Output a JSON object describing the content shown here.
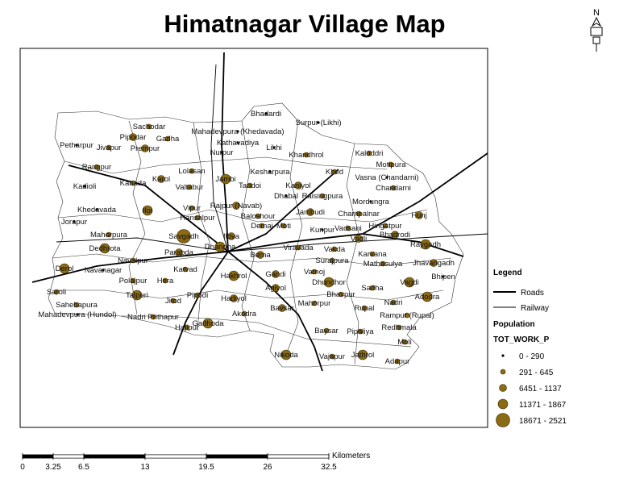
{
  "title": "Himatnagar Village Map",
  "north": "N",
  "villages": [
    {
      "name": "Bhadardi",
      "class": 0
    },
    {
      "name": "Surpur (Likhi)",
      "class": 0
    },
    {
      "name": "Sachodar",
      "class": 1
    },
    {
      "name": "Pipodar",
      "class": 2
    },
    {
      "name": "Gadha",
      "class": 1
    },
    {
      "name": "Mahadevpura (Khedavada)",
      "class": 0
    },
    {
      "name": "Kathavadiya",
      "class": 0
    },
    {
      "name": "Petharpur",
      "class": 0
    },
    {
      "name": "Jivapur",
      "class": 1
    },
    {
      "name": "Prempur",
      "class": 2
    },
    {
      "name": "Nurpur",
      "class": 0
    },
    {
      "name": "Likhi",
      "class": 0
    },
    {
      "name": "Khandhrol",
      "class": 1
    },
    {
      "name": "Kaloddri",
      "class": 1
    },
    {
      "name": "Motipura",
      "class": 1
    },
    {
      "name": "Rangpur",
      "class": 1
    },
    {
      "name": "Lolasan",
      "class": 1
    },
    {
      "name": "Jambi",
      "class": 3
    },
    {
      "name": "Kesharpura",
      "class": 0
    },
    {
      "name": "Khed",
      "class": 1
    },
    {
      "name": "Vasna (Chandarni)",
      "class": 0
    },
    {
      "name": "Kadioli",
      "class": 0
    },
    {
      "name": "Kanada",
      "class": 1
    },
    {
      "name": "Karol",
      "class": 2
    },
    {
      "name": "Valtabur",
      "class": 1
    },
    {
      "name": "Tandoi",
      "class": 1
    },
    {
      "name": "Kaniyol",
      "class": 2
    },
    {
      "name": "Chandarni",
      "class": 1
    },
    {
      "name": "Dhabal",
      "class": 0
    },
    {
      "name": "Raisingpura",
      "class": 1
    },
    {
      "name": "Mordungra",
      "class": 0
    },
    {
      "name": "Khedavada",
      "class": 0
    },
    {
      "name": "Iloi",
      "class": 3
    },
    {
      "name": "Vipur",
      "class": 1
    },
    {
      "name": "Rajpur (Navab)",
      "class": 2
    },
    {
      "name": "Hansalpur",
      "class": 1
    },
    {
      "name": "Baloshour",
      "class": 1
    },
    {
      "name": "Jambudi",
      "class": 2
    },
    {
      "name": "Champalnar",
      "class": 1
    },
    {
      "name": "Hunj",
      "class": 2
    },
    {
      "name": "Jorapur",
      "class": 0
    },
    {
      "name": "Hingatpur",
      "class": 1
    },
    {
      "name": "Demai",
      "class": 1
    },
    {
      "name": "Moti",
      "class": 1
    },
    {
      "name": "Kunpur",
      "class": 0
    },
    {
      "name": "Vadsani",
      "class": 1
    },
    {
      "name": "Bhadrodi",
      "class": 2
    },
    {
      "name": "Mahorpura",
      "class": 1
    },
    {
      "name": "Savgadh",
      "class": 4
    },
    {
      "name": "Ilova",
      "class": 2
    },
    {
      "name": "Vadli",
      "class": 2
    },
    {
      "name": "Raygadh",
      "class": 3
    },
    {
      "name": "Dedhrota",
      "class": 3
    },
    {
      "name": "Dhandha",
      "class": 3
    },
    {
      "name": "Parabda",
      "class": 2
    },
    {
      "name": "Berna",
      "class": 2
    },
    {
      "name": "Viravada",
      "class": 1
    },
    {
      "name": "Vakda",
      "class": 1
    },
    {
      "name": "Surajpura",
      "class": 1
    },
    {
      "name": "Karvana",
      "class": 1
    },
    {
      "name": "Navalpur",
      "class": 1
    },
    {
      "name": "Jhavangadh",
      "class": 2
    },
    {
      "name": "Mathasulya",
      "class": 1
    },
    {
      "name": "Derol",
      "class": 3
    },
    {
      "name": "Navanagar",
      "class": 0
    },
    {
      "name": "Katvad",
      "class": 1
    },
    {
      "name": "Hakhrol",
      "class": 3
    },
    {
      "name": "Gandi",
      "class": 2
    },
    {
      "name": "Vamoj",
      "class": 1
    },
    {
      "name": "Bhipen",
      "class": 0
    },
    {
      "name": "Polajpur",
      "class": 1
    },
    {
      "name": "Hera",
      "class": 1
    },
    {
      "name": "Dhundhor",
      "class": 3
    },
    {
      "name": "Vagdi",
      "class": 3
    },
    {
      "name": "Agiyol",
      "class": 2
    },
    {
      "name": "Sadha",
      "class": 1
    },
    {
      "name": "Saroli",
      "class": 1
    },
    {
      "name": "Talpuri",
      "class": 3
    },
    {
      "name": "Pipodi",
      "class": 1
    },
    {
      "name": "Bhavpur",
      "class": 1
    },
    {
      "name": "Adodra",
      "class": 3
    },
    {
      "name": "Sahebapura",
      "class": 1
    },
    {
      "name": "Hadiyol",
      "class": 2
    },
    {
      "name": "Jitod",
      "class": 1
    },
    {
      "name": "Mahorpur",
      "class": 1
    },
    {
      "name": "Rupal",
      "class": 1
    },
    {
      "name": "Nadri",
      "class": 1
    },
    {
      "name": "Bavsar",
      "class": 2
    },
    {
      "name": "Mahadevpura (Hundol)",
      "class": 0
    },
    {
      "name": "Nadri Prithapur",
      "class": 1
    },
    {
      "name": "Akodra",
      "class": 1
    },
    {
      "name": "Rampur (Rupal)",
      "class": 1
    },
    {
      "name": "Gadhoda",
      "class": 3
    },
    {
      "name": "Hajipur",
      "class": 1
    },
    {
      "name": "Baysar",
      "class": 1
    },
    {
      "name": "Pipaliya",
      "class": 1
    },
    {
      "name": "Redhmala",
      "class": 1
    },
    {
      "name": "Moli",
      "class": 1
    },
    {
      "name": "Nikoda",
      "class": 3
    },
    {
      "name": "Vajapur",
      "class": 1
    },
    {
      "name": "Jathrol",
      "class": 3
    },
    {
      "name": "Adapur",
      "class": 1
    }
  ],
  "legend": {
    "title": "Legend",
    "roads": "Roads",
    "railway": "Railway",
    "population": "Population",
    "field": "TOT_WORK_P",
    "classes": [
      "0 - 290",
      "291 - 645",
      "6451 - 1137",
      "11371 - 1867",
      "18671 - 2521"
    ]
  },
  "scale": {
    "unit": "Kilometers",
    "ticks": [
      0,
      3.25,
      6.5,
      13,
      19.5,
      26,
      32.5
    ]
  }
}
